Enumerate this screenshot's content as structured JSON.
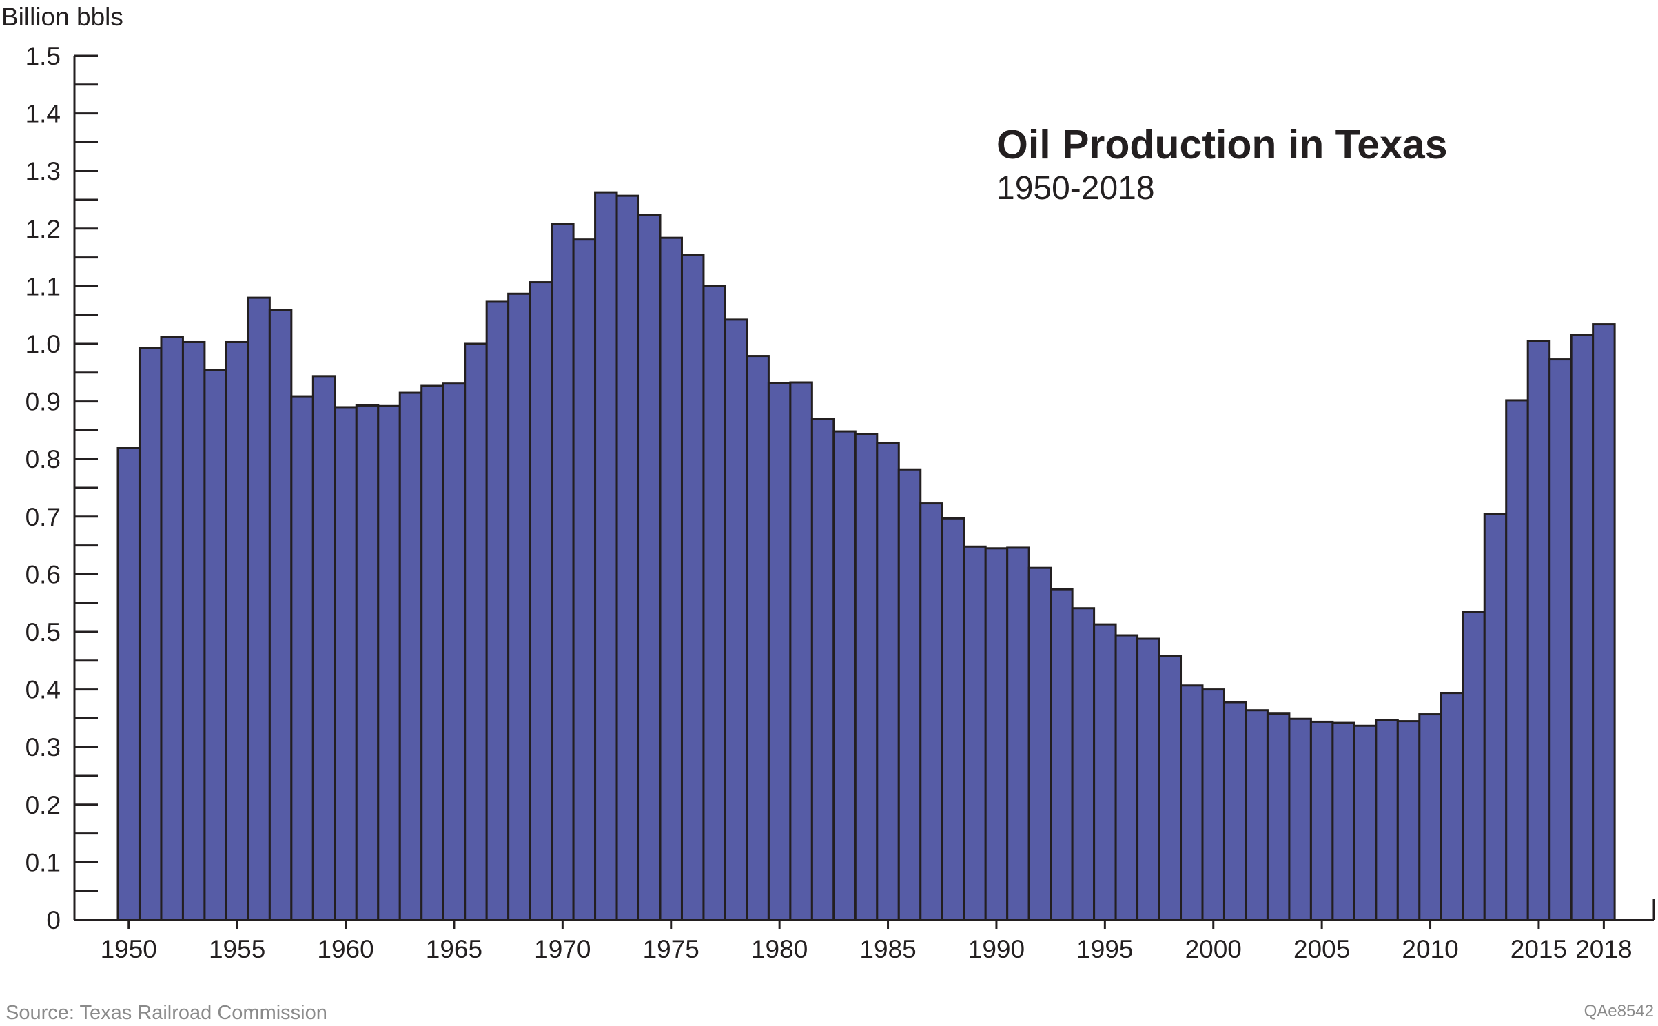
{
  "chart_data": {
    "type": "bar",
    "title": "Oil Production in Texas",
    "subtitle": "1950-2018",
    "ylabel": "Billion bbls",
    "xlabel": "",
    "ylim": [
      0,
      1.5
    ],
    "y_ticks": [
      "0",
      "0.1",
      "0.2",
      "0.3",
      "0.4",
      "0.5",
      "0.6",
      "0.7",
      "0.8",
      "0.9",
      "1.0",
      "1.1",
      "1.2",
      "1.3",
      "1.4",
      "1.5"
    ],
    "x_ticks": [
      "1950",
      "1955",
      "1960",
      "1965",
      "1970",
      "1975",
      "1980",
      "1985",
      "1990",
      "1995",
      "2000",
      "2005",
      "2010",
      "2015",
      "2018"
    ],
    "categories": [
      1950,
      1951,
      1952,
      1953,
      1954,
      1955,
      1956,
      1957,
      1958,
      1959,
      1960,
      1961,
      1962,
      1963,
      1964,
      1965,
      1966,
      1967,
      1968,
      1969,
      1970,
      1971,
      1972,
      1973,
      1974,
      1975,
      1976,
      1977,
      1978,
      1979,
      1980,
      1981,
      1982,
      1983,
      1984,
      1985,
      1986,
      1987,
      1988,
      1989,
      1990,
      1991,
      1992,
      1993,
      1994,
      1995,
      1996,
      1997,
      1998,
      1999,
      2000,
      2001,
      2002,
      2003,
      2004,
      2005,
      2006,
      2007,
      2008,
      2009,
      2010,
      2011,
      2012,
      2013,
      2014,
      2015,
      2016,
      2017,
      2018
    ],
    "values": [
      0.819,
      0.993,
      1.012,
      1.003,
      0.955,
      1.003,
      1.08,
      1.059,
      0.909,
      0.944,
      0.89,
      0.893,
      0.892,
      0.915,
      0.927,
      0.931,
      1.0,
      1.073,
      1.087,
      1.107,
      1.208,
      1.181,
      1.263,
      1.257,
      1.224,
      1.184,
      1.154,
      1.101,
      1.042,
      0.979,
      0.932,
      0.933,
      0.87,
      0.848,
      0.843,
      0.828,
      0.782,
      0.723,
      0.697,
      0.648,
      0.645,
      0.646,
      0.611,
      0.574,
      0.541,
      0.513,
      0.494,
      0.488,
      0.458,
      0.407,
      0.4,
      0.378,
      0.364,
      0.358,
      0.349,
      0.344,
      0.342,
      0.337,
      0.347,
      0.345,
      0.357,
      0.394,
      0.535,
      0.704,
      0.902,
      1.005,
      0.973,
      1.016,
      1.034
    ],
    "bar_color": "#565ca6",
    "grid": false
  },
  "labels": {
    "source": "Source: Texas Railroad Commission",
    "figure_code": "QAe8542"
  }
}
